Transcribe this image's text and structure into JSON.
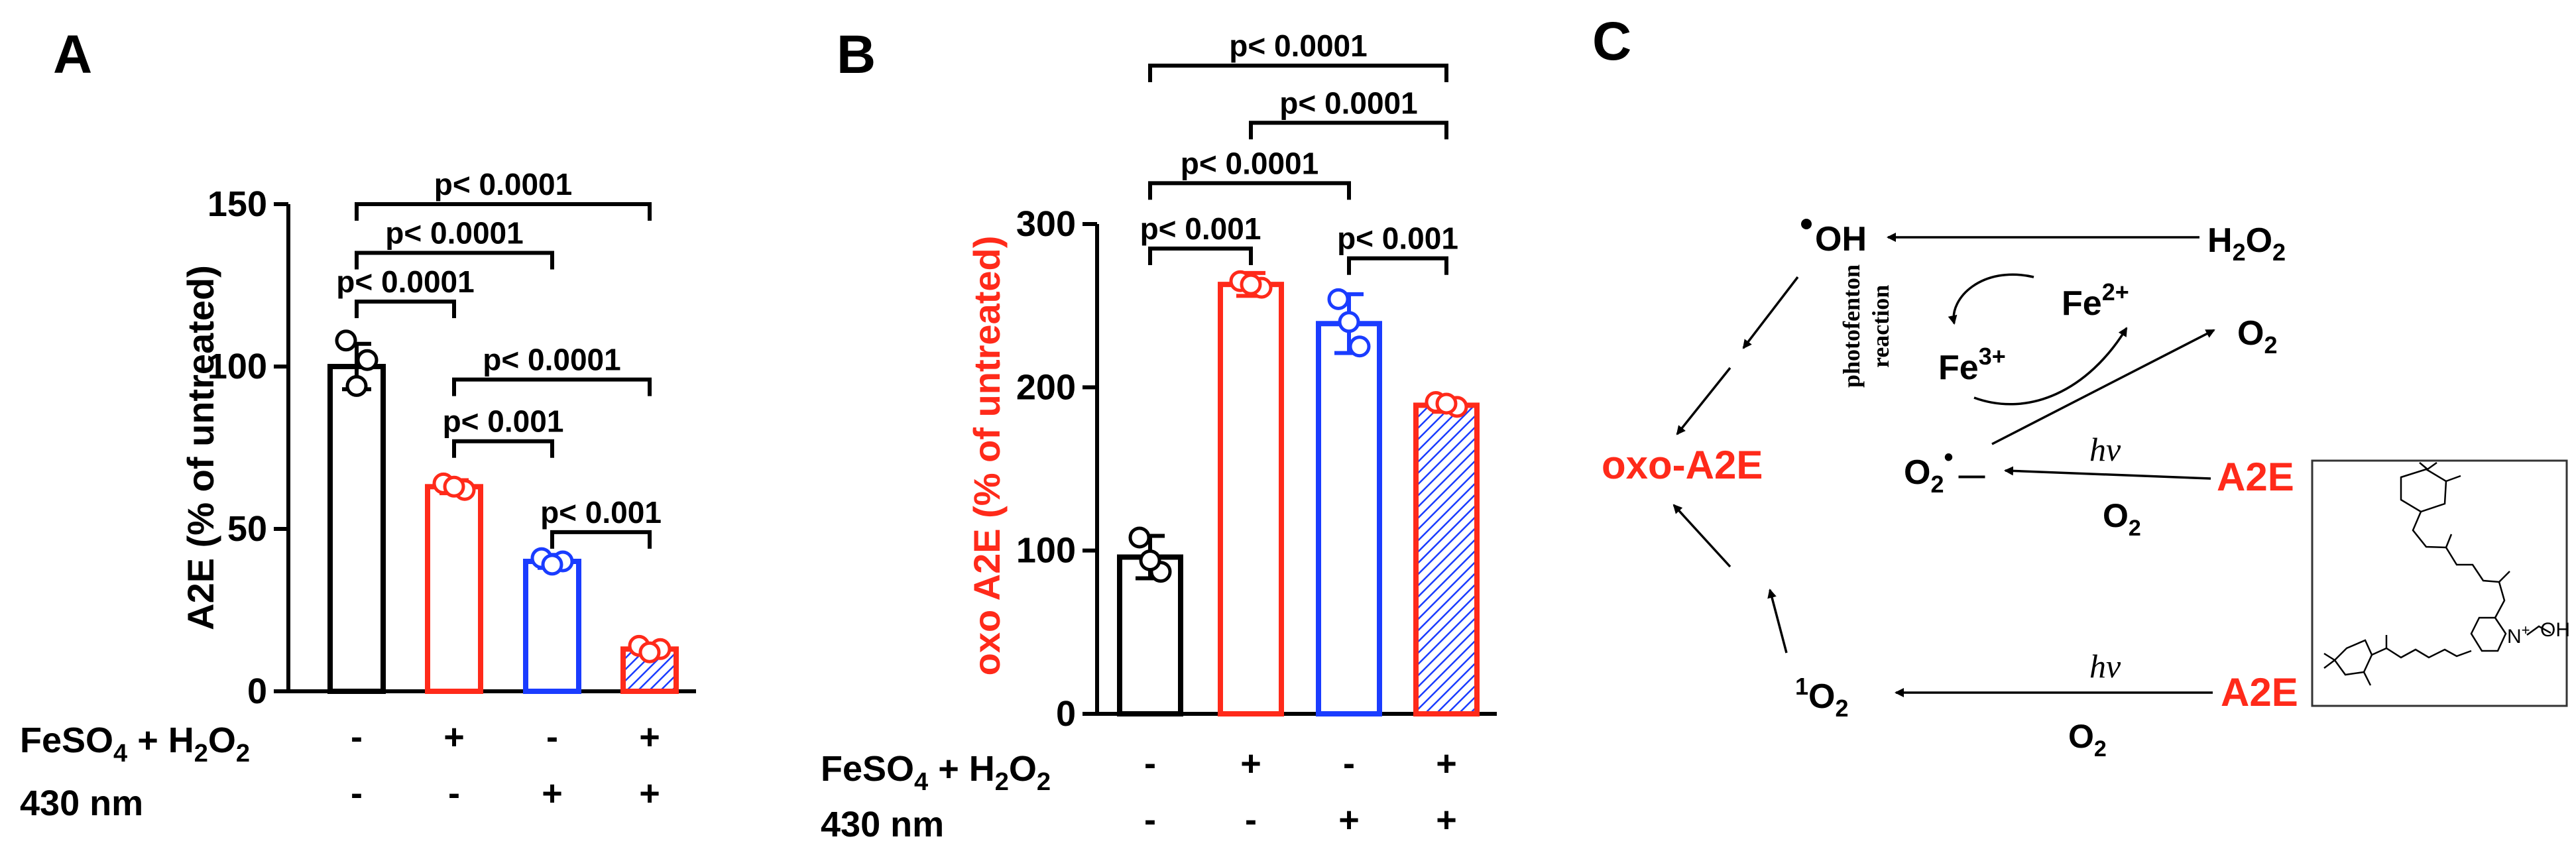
{
  "panel_letters": {
    "a": "A",
    "b": "B",
    "c": "C"
  },
  "treatments": {
    "row1_label_prefix": "FeSO",
    "row1_label_sub": "4",
    "row1_label_mid": " + H",
    "row1_label_sub2": "2",
    "row1_label_end": "O",
    "row1_label_sub3": "2",
    "row2_label": "430 nm",
    "row1_marks": [
      "-",
      "+",
      "-",
      "+"
    ],
    "row2_marks": [
      "-",
      "-",
      "+",
      "+"
    ]
  },
  "colors": {
    "black": "#000000",
    "red": "#ff2a1a",
    "blue": "#1a3cff",
    "hatch": "#1a3cff"
  },
  "chart_data": [
    {
      "id": "A",
      "type": "bar",
      "title": "",
      "xlabel": "",
      "ylabel": "A2E (% of untreated)",
      "ylim": [
        0,
        150
      ],
      "yticks": [
        0,
        50,
        100,
        150
      ],
      "tick_labels": [
        "0",
        "50",
        "100",
        "150"
      ],
      "categories": [
        "untreated",
        "FeSO4+H2O2",
        "430 nm",
        "FeSO4+H2O2 + 430 nm"
      ],
      "values": [
        100,
        63,
        40,
        13
      ],
      "errors": [
        7,
        2,
        2,
        1.5
      ],
      "points": [
        [
          108,
          102,
          94
        ],
        [
          64,
          62,
          63
        ],
        [
          41,
          40,
          39
        ],
        [
          14,
          13,
          12
        ]
      ],
      "bar_colors": [
        "black",
        "red",
        "blue",
        "red"
      ],
      "hatched": [
        false,
        false,
        false,
        true
      ],
      "brackets": [
        {
          "from": 0,
          "to": 1,
          "label": "p< 0.0001",
          "y": 120
        },
        {
          "from": 0,
          "to": 2,
          "label": "p< 0.0001",
          "y": 135
        },
        {
          "from": 0,
          "to": 3,
          "label": "p< 0.0001",
          "y": 150
        },
        {
          "from": 1,
          "to": 2,
          "label": "p< 0.001",
          "y": 77
        },
        {
          "from": 1,
          "to": 3,
          "label": "p< 0.0001",
          "y": 96
        },
        {
          "from": 2,
          "to": 3,
          "label": "p< 0.001",
          "y": 49
        }
      ]
    },
    {
      "id": "B",
      "type": "bar",
      "title": "",
      "xlabel": "",
      "ylabel": "oxo A2E (% of untreated)",
      "ylim": [
        0,
        300
      ],
      "yticks": [
        0,
        100,
        200,
        300
      ],
      "tick_labels": [
        "0",
        "100",
        "200",
        "300"
      ],
      "categories": [
        "untreated",
        "FeSO4+H2O2",
        "430 nm",
        "FeSO4+H2O2 + 430 nm"
      ],
      "values": [
        96,
        263,
        239,
        189
      ],
      "errors": [
        13,
        7,
        18,
        4
      ],
      "points": [
        [
          108,
          87,
          94
        ],
        [
          265,
          261,
          263
        ],
        [
          254,
          225,
          240
        ],
        [
          191,
          188,
          190
        ]
      ],
      "bar_colors": [
        "black",
        "red",
        "blue",
        "red"
      ],
      "hatched": [
        false,
        false,
        false,
        true
      ],
      "brackets": [
        {
          "from": 0,
          "to": 1,
          "label": "p< 0.001",
          "y": 285
        },
        {
          "from": 0,
          "to": 2,
          "label": "p< 0.0001",
          "y": 325
        },
        {
          "from": 1,
          "to": 3,
          "label": "p< 0.0001",
          "y": 362
        },
        {
          "from": 0,
          "to": 3,
          "label": "p< 0.0001",
          "y": 397
        },
        {
          "from": 2,
          "to": 3,
          "label": "p< 0.001",
          "y": 279
        }
      ]
    }
  ],
  "scheme": {
    "oh_label": "OH",
    "h2o2_label": "H",
    "h2o2_sub1": "2",
    "h2o2_mid": "O",
    "h2o2_sub2": "2",
    "fe2_label": "Fe",
    "fe2_sup": "2+",
    "fe3_label": "Fe",
    "fe3_sup": "3+",
    "o2_label": "O",
    "o2_sub": "2",
    "photofenton_line1": "photofenton",
    "photofenton_line2": "reaction",
    "oxo_a2e_label": "oxo-A2E",
    "superoxide_label": "O",
    "superoxide_sub": "2",
    "superoxide_sup": "•",
    "superoxide_dash": "—",
    "a2e_top_label": "A2E",
    "a2e_bottom_label": "A2E",
    "hv_top": "hν",
    "hv_bottom": "hν",
    "o2_under_top": "O",
    "o2_under_top_sub": "2",
    "o2_under_bottom": "O",
    "o2_under_bottom_sub": "2",
    "singlet_o2_sup": "1",
    "singlet_o2_label": "O",
    "singlet_o2_sub": "2",
    "structure_n_label": "N",
    "structure_plus": "+",
    "structure_oh": "OH"
  }
}
